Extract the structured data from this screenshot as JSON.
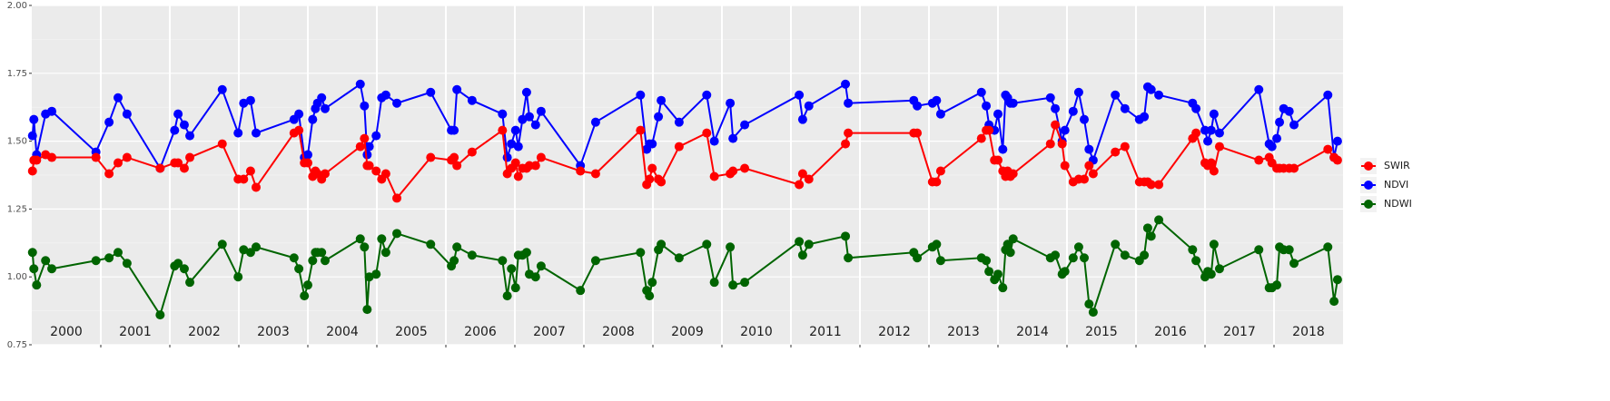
{
  "chart_data": {
    "type": "line",
    "x": [
      2000.01,
      2000.03,
      2000.07,
      2000.2,
      2000.29,
      2000.93,
      2001.12,
      2001.25,
      2001.38,
      2001.86,
      2002.07,
      2002.12,
      2002.21,
      2002.29,
      2002.76,
      2002.99,
      2003.07,
      2003.17,
      2003.25,
      2003.8,
      2003.87,
      2003.95,
      2004.0,
      2004.07,
      2004.11,
      2004.14,
      2004.2,
      2004.25,
      2004.76,
      2004.82,
      2004.86,
      2004.89,
      2004.99,
      2005.07,
      2005.13,
      2005.29,
      2005.78,
      2006.08,
      2006.12,
      2006.16,
      2006.38,
      2006.82,
      2006.89,
      2006.95,
      2007.01,
      2007.05,
      2007.11,
      2007.17,
      2007.21,
      2007.3,
      2007.38,
      2007.95,
      2008.17,
      2008.82,
      2008.91,
      2008.95,
      2008.99,
      2009.08,
      2009.12,
      2009.38,
      2009.78,
      2009.89,
      2010.12,
      2010.16,
      2010.33,
      2011.12,
      2011.17,
      2011.26,
      2011.79,
      2011.83,
      2012.78,
      2012.83,
      2013.05,
      2013.11,
      2013.17,
      2013.76,
      2013.83,
      2013.87,
      2013.95,
      2014.0,
      2014.07,
      2014.11,
      2014.14,
      2014.18,
      2014.22,
      2014.76,
      2014.83,
      2014.93,
      2014.97,
      2015.09,
      2015.17,
      2015.25,
      2015.32,
      2015.38,
      2015.7,
      2015.84,
      2016.05,
      2016.12,
      2016.17,
      2016.22,
      2016.33,
      2016.82,
      2016.87,
      2017.0,
      2017.04,
      2017.09,
      2017.13,
      2017.21,
      2017.78,
      2017.93,
      2017.97,
      2018.04,
      2018.08,
      2018.14,
      2018.22,
      2018.29,
      2018.78,
      2018.87,
      2018.92
    ],
    "series": [
      {
        "name": "SWIR",
        "color": "#ff0000",
        "values": [
          1.39,
          1.43,
          1.43,
          1.45,
          1.44,
          1.44,
          1.38,
          1.42,
          1.44,
          1.4,
          1.42,
          1.42,
          1.4,
          1.44,
          1.49,
          1.36,
          1.36,
          1.39,
          1.33,
          1.53,
          1.54,
          1.42,
          1.42,
          1.37,
          1.39,
          1.38,
          1.36,
          1.38,
          1.48,
          1.51,
          1.41,
          1.41,
          1.39,
          1.36,
          1.38,
          1.29,
          1.44,
          1.43,
          1.44,
          1.41,
          1.46,
          1.54,
          1.38,
          1.4,
          1.42,
          1.37,
          1.4,
          1.4,
          1.41,
          1.41,
          1.44,
          1.39,
          1.38,
          1.54,
          1.34,
          1.36,
          1.4,
          1.36,
          1.35,
          1.48,
          1.53,
          1.37,
          1.38,
          1.39,
          1.4,
          1.34,
          1.38,
          1.36,
          1.49,
          1.53,
          1.53,
          1.53,
          1.35,
          1.35,
          1.39,
          1.51,
          1.54,
          1.54,
          1.43,
          1.43,
          1.39,
          1.37,
          1.39,
          1.37,
          1.38,
          1.49,
          1.56,
          1.49,
          1.41,
          1.35,
          1.36,
          1.36,
          1.41,
          1.38,
          1.46,
          1.48,
          1.35,
          1.35,
          1.35,
          1.34,
          1.34,
          1.51,
          1.53,
          1.42,
          1.41,
          1.42,
          1.39,
          1.48,
          1.43,
          1.44,
          1.42,
          1.4,
          1.4,
          1.4,
          1.4,
          1.4,
          1.47,
          1.44,
          1.43
        ]
      },
      {
        "name": "NDVI",
        "color": "#0000ff",
        "values": [
          1.52,
          1.58,
          1.45,
          1.6,
          1.61,
          1.46,
          1.57,
          1.66,
          1.6,
          1.4,
          1.54,
          1.6,
          1.56,
          1.52,
          1.69,
          1.53,
          1.64,
          1.65,
          1.53,
          1.58,
          1.6,
          1.44,
          1.45,
          1.58,
          1.62,
          1.64,
          1.66,
          1.62,
          1.71,
          1.63,
          1.45,
          1.48,
          1.52,
          1.66,
          1.67,
          1.64,
          1.68,
          1.54,
          1.54,
          1.69,
          1.65,
          1.6,
          1.44,
          1.49,
          1.54,
          1.48,
          1.58,
          1.68,
          1.59,
          1.56,
          1.61,
          1.41,
          1.57,
          1.67,
          1.47,
          1.49,
          1.49,
          1.59,
          1.65,
          1.57,
          1.67,
          1.5,
          1.64,
          1.51,
          1.56,
          1.67,
          1.58,
          1.63,
          1.71,
          1.64,
          1.65,
          1.63,
          1.64,
          1.65,
          1.6,
          1.68,
          1.63,
          1.56,
          1.54,
          1.6,
          1.47,
          1.67,
          1.66,
          1.64,
          1.64,
          1.66,
          1.62,
          1.5,
          1.54,
          1.61,
          1.68,
          1.58,
          1.47,
          1.43,
          1.67,
          1.62,
          1.58,
          1.59,
          1.7,
          1.69,
          1.67,
          1.64,
          1.62,
          1.54,
          1.5,
          1.54,
          1.6,
          1.53,
          1.69,
          1.49,
          1.48,
          1.51,
          1.57,
          1.62,
          1.61,
          1.56,
          1.67,
          1.44,
          1.5
        ]
      },
      {
        "name": "NDWI",
        "color": "#006400",
        "values": [
          1.09,
          1.03,
          0.97,
          1.06,
          1.03,
          1.06,
          1.07,
          1.09,
          1.05,
          0.86,
          1.04,
          1.05,
          1.03,
          0.98,
          1.12,
          1.0,
          1.1,
          1.09,
          1.11,
          1.07,
          1.03,
          0.93,
          0.97,
          1.06,
          1.09,
          1.09,
          1.09,
          1.06,
          1.14,
          1.11,
          0.88,
          1.0,
          1.01,
          1.14,
          1.09,
          1.16,
          1.12,
          1.04,
          1.06,
          1.11,
          1.08,
          1.06,
          0.93,
          1.03,
          0.96,
          1.08,
          1.08,
          1.09,
          1.01,
          1.0,
          1.04,
          0.95,
          1.06,
          1.09,
          0.95,
          0.93,
          0.98,
          1.1,
          1.12,
          1.07,
          1.12,
          0.98,
          1.11,
          0.97,
          0.98,
          1.13,
          1.08,
          1.12,
          1.15,
          1.07,
          1.09,
          1.07,
          1.11,
          1.12,
          1.06,
          1.07,
          1.06,
          1.02,
          0.99,
          1.01,
          0.96,
          1.1,
          1.12,
          1.09,
          1.14,
          1.07,
          1.08,
          1.01,
          1.02,
          1.07,
          1.11,
          1.07,
          0.9,
          0.87,
          1.12,
          1.08,
          1.06,
          1.08,
          1.18,
          1.15,
          1.21,
          1.1,
          1.06,
          1.0,
          1.02,
          1.01,
          1.12,
          1.03,
          1.1,
          0.96,
          0.96,
          0.97,
          1.11,
          1.1,
          1.1,
          1.05,
          1.11,
          0.91,
          0.99
        ]
      }
    ],
    "xlim": [
      2000,
      2019
    ],
    "xticks": [
      2001,
      2002,
      2003,
      2004,
      2005,
      2006,
      2007,
      2008,
      2009,
      2010,
      2011,
      2012,
      2013,
      2014,
      2015,
      2016,
      2017,
      2018
    ],
    "year_labels": [
      2000,
      2001,
      2002,
      2003,
      2004,
      2005,
      2006,
      2007,
      2008,
      2009,
      2010,
      2011,
      2012,
      2013,
      2014,
      2015,
      2016,
      2017,
      2018
    ],
    "ylim": [
      0.75,
      2.0
    ],
    "yticks": [
      {
        "value": 0.75,
        "label": "0.75"
      },
      {
        "value": 1.0,
        "label": "1.00"
      },
      {
        "value": 1.25,
        "label": "1.25"
      },
      {
        "value": 1.5,
        "label": "1.50"
      },
      {
        "value": 1.75,
        "label": "1.75"
      },
      {
        "value": 2.0,
        "label": "2.00"
      }
    ],
    "grid": true,
    "legend": "right"
  }
}
